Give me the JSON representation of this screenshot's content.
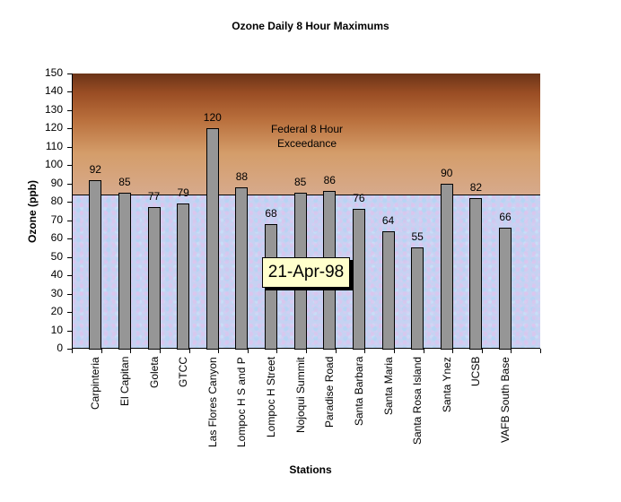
{
  "chart_data": {
    "type": "bar",
    "title": "Ozone Daily 8 Hour Maximums",
    "xlabel": "Stations",
    "ylabel": "Ozone (ppb)",
    "ylim": [
      0,
      150
    ],
    "yticks": [
      0,
      10,
      20,
      30,
      40,
      50,
      60,
      70,
      80,
      90,
      100,
      110,
      120,
      130,
      140,
      150
    ],
    "categories": [
      "Carpinteria",
      "El Capitan",
      "Goleta",
      "GTCC",
      "Las Flores Canyon",
      "Lompoc H S and P",
      "Lompoc H Street",
      "Nojoqui Summit",
      "Paradise Road",
      "Santa Barbara",
      "Santa Maria",
      "Santa Rosa Island",
      "Santa Ynez",
      "UCSB",
      "VAFB South Base"
    ],
    "values": [
      92,
      85,
      77,
      79,
      120,
      88,
      68,
      85,
      86,
      76,
      64,
      55,
      90,
      82,
      66
    ],
    "data_labels": true,
    "threshold": {
      "value": 84,
      "label": "Federal 8 Hour Exceedance"
    },
    "date_label": "21-Apr-98",
    "grid": false,
    "legend": "none",
    "colors": {
      "bar": "#969696",
      "upper_band_top": "#6b3418",
      "upper_band_bottom": "#d7aa8c",
      "lower_band": "#c6d2f2",
      "date_box": "#ffffcc"
    }
  },
  "title": "Ozone Daily 8 Hour Maximums",
  "xlabel": "Stations",
  "ylabel": "Ozone (ppb)",
  "annotation_line1": "Federal 8 Hour",
  "annotation_line2": "Exceedance",
  "date_label": "21-Apr-98"
}
